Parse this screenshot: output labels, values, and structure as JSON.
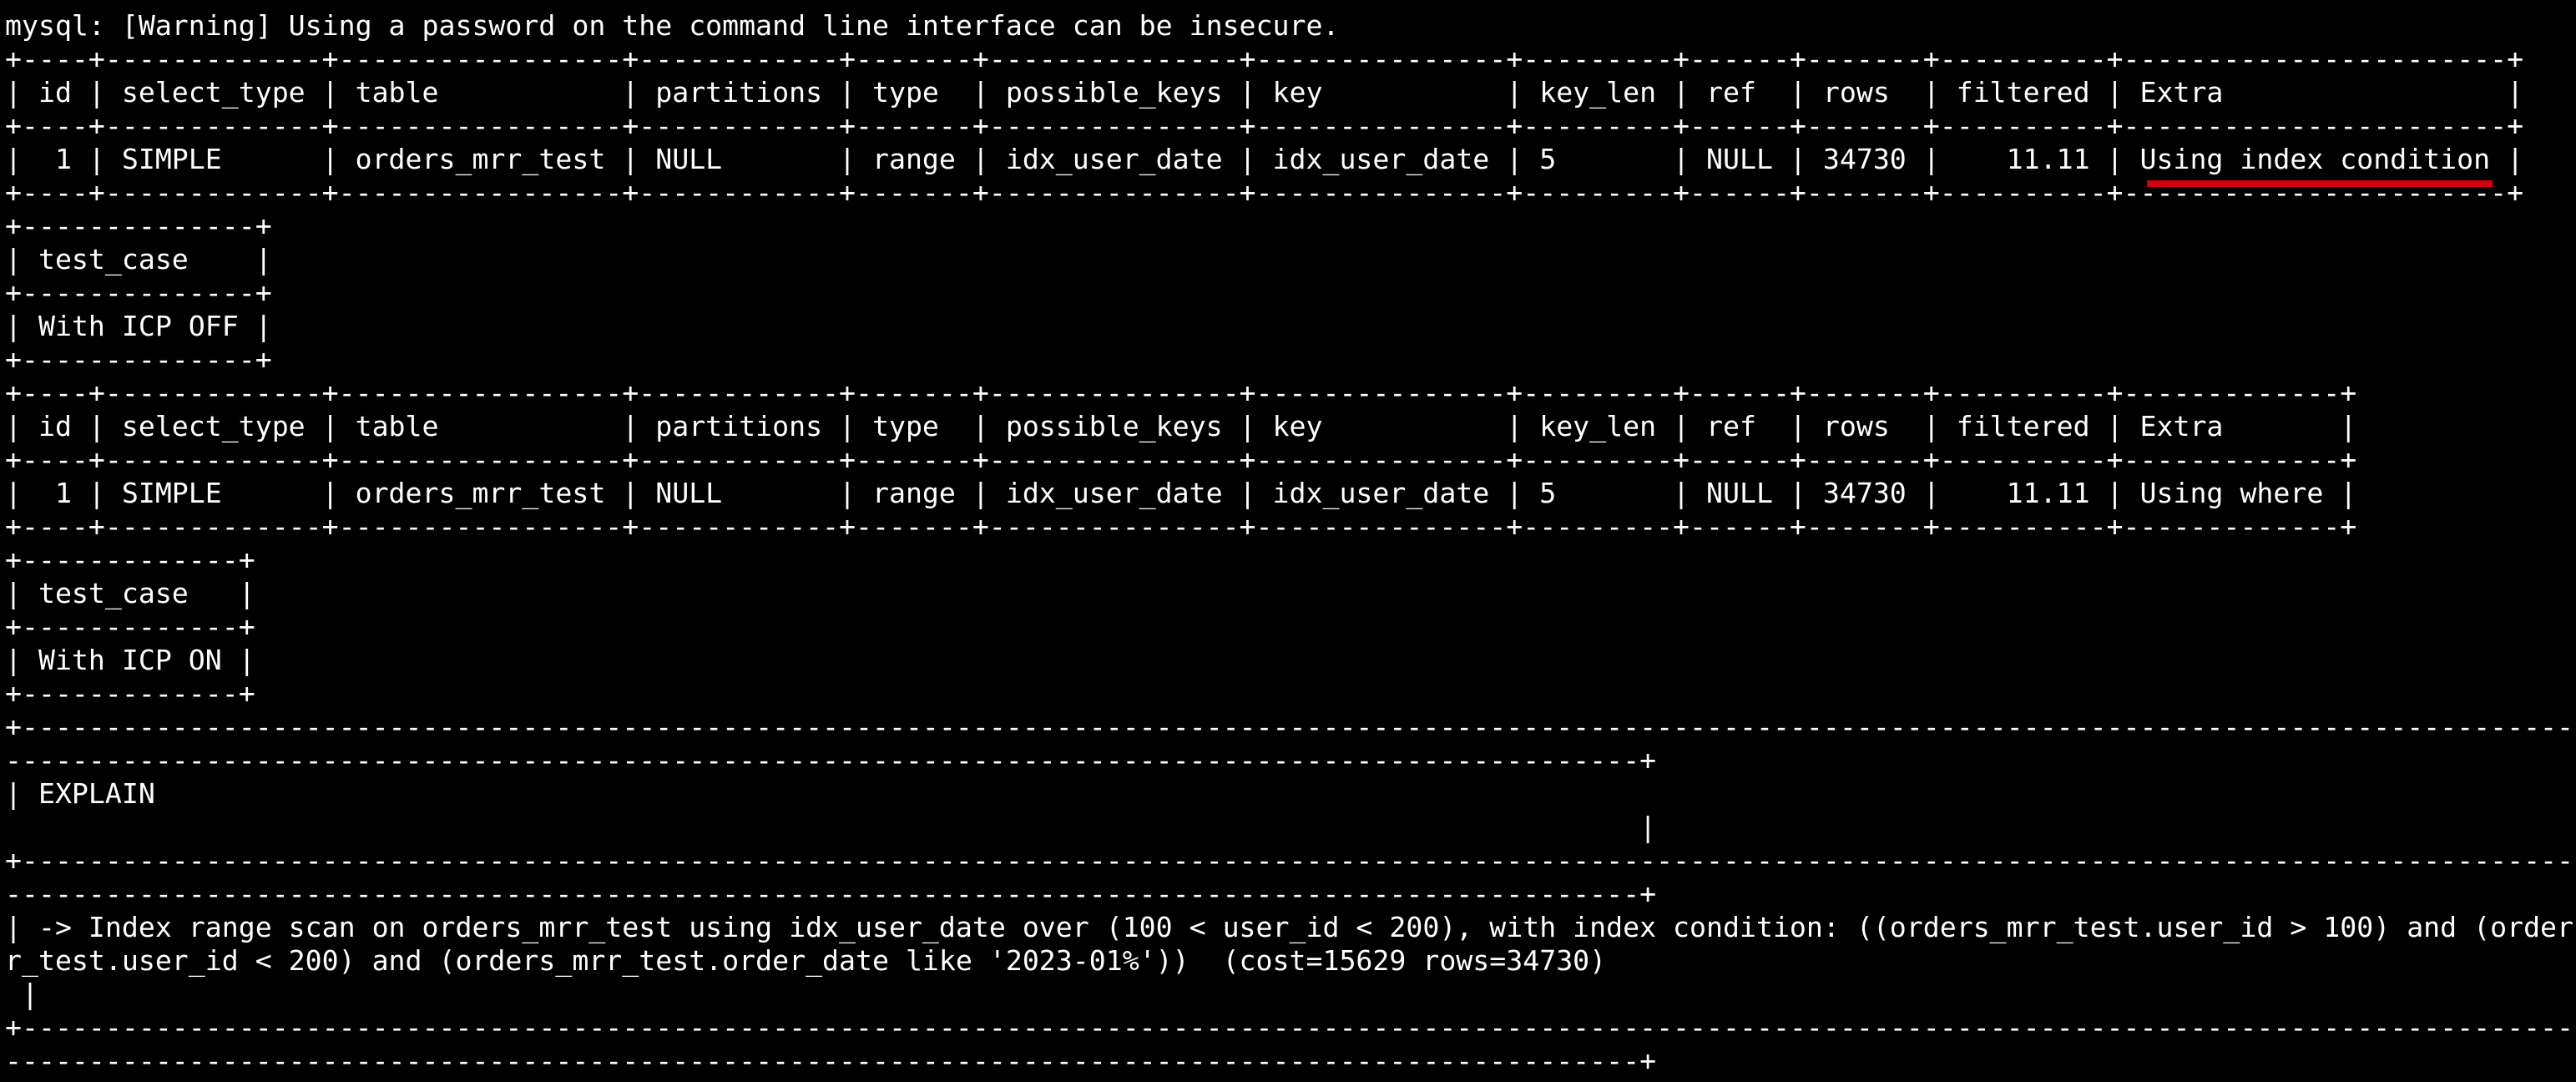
{
  "terminal": {
    "lines": [
      "mysql: [Warning] Using a password on the command line interface can be insecure.",
      "+----+-------------+-----------------+------------+-------+---------------+---------------+---------+------+-------+----------+-----------------------+",
      "| id | select_type | table           | partitions | type  | possible_keys | key           | key_len | ref  | rows  | filtered | Extra                 |",
      "+----+-------------+-----------------+------------+-------+---------------+---------------+---------+------+-------+----------+-----------------------+",
      "|  1 | SIMPLE      | orders_mrr_test | NULL       | range | idx_user_date | idx_user_date | 5       | NULL | 34730 |    11.11 | Using index condition |",
      "+----+-------------+-----------------+------------+-------+---------------+---------------+---------+------+-------+----------+-----------------------+",
      "+--------------+",
      "| test_case    |",
      "+--------------+",
      "| With ICP OFF |",
      "+--------------+",
      "+----+-------------+-----------------+------------+-------+---------------+---------------+---------+------+-------+----------+-------------+",
      "| id | select_type | table           | partitions | type  | possible_keys | key           | key_len | ref  | rows  | filtered | Extra       |",
      "+----+-------------+-----------------+------------+-------+---------------+---------------+---------+------+-------+----------+-------------+",
      "|  1 | SIMPLE      | orders_mrr_test | NULL       | range | idx_user_date | idx_user_date | 5       | NULL | 34730 |    11.11 | Using where |",
      "+----+-------------+-----------------+------------+-------+---------------+---------------+---------+------+-------+----------+-------------+",
      "+-------------+",
      "| test_case   |",
      "+-------------+",
      "| With ICP ON |",
      "+-------------+",
      "+------------------------------------------------------------------------------------------------------------------------------------------------------------------------",
      "--------------------------------------------------------------------------------------------------+",
      "| EXPLAIN",
      "                                                                                                  |",
      "+------------------------------------------------------------------------------------------------------------------------------------------------------------------------",
      "--------------------------------------------------------------------------------------------------+",
      "| -> Index range scan on orders_mrr_test using idx_user_date over (100 < user_id < 200), with index condition: ((orders_mrr_test.user_id > 100) and (order",
      "r_test.user_id < 200) and (orders_mrr_test.order_date like '2023-01%'))  (cost=15629 rows=34730)",
      " |",
      "+------------------------------------------------------------------------------------------------------------------------------------------------------------------------",
      "--------------------------------------------------------------------------------------------------+"
    ]
  },
  "colors": {
    "background": "#000000",
    "text": "#ffffff",
    "highlight_underline": "#d0000f"
  },
  "annotation": {
    "underlined_text": "Using index condition"
  }
}
